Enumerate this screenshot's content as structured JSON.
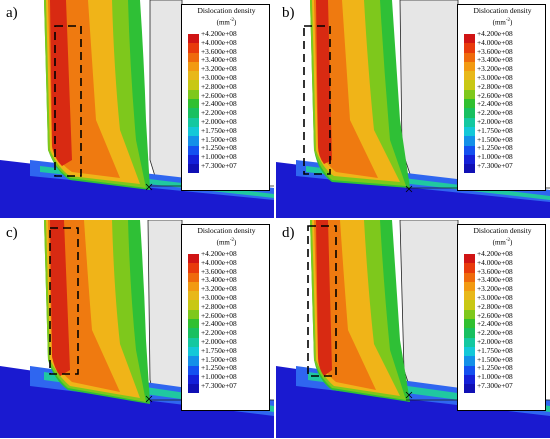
{
  "panels": [
    {
      "label": "a)"
    },
    {
      "label": "b)"
    },
    {
      "label": "c)"
    },
    {
      "label": "d)"
    }
  ],
  "legend": {
    "title": "Dislocation density",
    "unit_base": "(mm",
    "unit_exp": "-2",
    "unit_close": ")",
    "labels": [
      "+4.200e+08",
      "+4.000e+08",
      "+3.600e+08",
      "+3.400e+08",
      "+3.200e+08",
      "+3.000e+08",
      "+2.800e+08",
      "+2.600e+08",
      "+2.400e+08",
      "+2.200e+08",
      "+2.000e+08",
      "+1.750e+08",
      "+1.500e+08",
      "+1.250e+08",
      "+1.000e+08",
      "+7.300e+07"
    ],
    "colors": [
      "#d01414",
      "#e83a0c",
      "#ef6a0c",
      "#f29a12",
      "#e8b81a",
      "#c8c814",
      "#7ec81c",
      "#30c030",
      "#18c060",
      "#14c8a0",
      "#14c8d8",
      "#1490e8",
      "#1450f0",
      "#1420d8",
      "#1010b4"
    ]
  }
}
